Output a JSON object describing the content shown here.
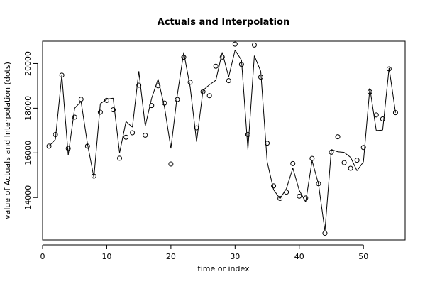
{
  "chart_data": {
    "type": "line",
    "title": "Actuals and Interpolation",
    "xlabel": "time or index",
    "ylabel": "value of Actuals and Interpolation (dots)",
    "xlim": [
      0,
      56.5
    ],
    "ylim": [
      12100,
      21000
    ],
    "x_ticks": [
      0,
      10,
      20,
      30,
      40,
      50
    ],
    "y_ticks": [
      14000,
      16000,
      18000,
      20000
    ],
    "grid": false,
    "legend": "none",
    "x": [
      1,
      2,
      3,
      4,
      5,
      6,
      7,
      8,
      9,
      10,
      11,
      12,
      13,
      14,
      15,
      16,
      17,
      18,
      19,
      20,
      21,
      22,
      23,
      24,
      25,
      26,
      27,
      28,
      29,
      30,
      31,
      32,
      33,
      34,
      35,
      36,
      37,
      38,
      39,
      40,
      41,
      42,
      43,
      44,
      45,
      46,
      47,
      48,
      49,
      50,
      51,
      52,
      53,
      54,
      55
    ],
    "series": [
      {
        "style": "points",
        "marker": "open-circle",
        "values": [
          16300,
          16820,
          19480,
          16200,
          17600,
          18400,
          16300,
          14960,
          17820,
          18350,
          17930,
          15760,
          16700,
          16900,
          19030,
          16790,
          18120,
          19000,
          18230,
          15500,
          18390,
          20280,
          19160,
          17120,
          18740,
          18560,
          19880,
          20290,
          19230,
          20870,
          19960,
          16820,
          20830,
          19390,
          16430,
          14520,
          13960,
          14240,
          15520,
          14060,
          13980,
          15750,
          14620,
          12400,
          16030,
          16720,
          15560,
          15310,
          15670,
          16240,
          18730,
          17700,
          17520,
          19760,
          17800
        ]
      },
      {
        "style": "line",
        "values": [
          16300,
          16600,
          19480,
          15900,
          18000,
          18300,
          16400,
          14900,
          18200,
          18400,
          18450,
          16000,
          17400,
          17150,
          19650,
          17200,
          18450,
          19300,
          18050,
          16200,
          18600,
          20500,
          18950,
          16500,
          18800,
          19050,
          19250,
          20500,
          19400,
          20600,
          20150,
          16150,
          20350,
          19650,
          15600,
          14350,
          13950,
          14400,
          15320,
          14320,
          13800,
          15650,
          14600,
          12500,
          16150,
          16050,
          16020,
          15800,
          15200,
          15600,
          18900,
          17000,
          17020,
          19800,
          17800
        ]
      }
    ]
  },
  "colors": {
    "background": "#ffffff",
    "line": "#000000",
    "points": "#000000",
    "axis": "#000000"
  }
}
